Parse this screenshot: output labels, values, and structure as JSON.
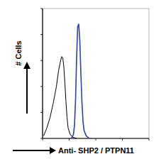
{
  "chart_data": {
    "type": "line",
    "x_label": "Anti- SHP2 / PTPN11",
    "y_label": "# Cells",
    "xlim": [
      0,
      100
    ],
    "ylim": [
      0,
      100
    ],
    "xticks": [
      0,
      25,
      50,
      75,
      100
    ],
    "yticks": [
      0,
      20,
      40,
      60,
      80,
      100
    ],
    "tick_labels": false,
    "grid": false,
    "series": [
      {
        "color": "#000000",
        "x": [
          1,
          4,
          7,
          10,
          13,
          15,
          17,
          18,
          19,
          20,
          21,
          22,
          23,
          24,
          26,
          28,
          32
        ],
        "values": [
          2,
          8,
          16,
          27,
          40,
          52,
          60,
          63,
          62,
          55,
          42,
          28,
          16,
          8,
          3,
          1,
          0
        ]
      },
      {
        "color": "#2f3fbf",
        "x": [
          27,
          29,
          30,
          31,
          32,
          33,
          34,
          35,
          36,
          37,
          38,
          39,
          41,
          44
        ],
        "values": [
          0,
          3,
          10,
          30,
          62,
          86,
          88,
          75,
          50,
          28,
          13,
          6,
          2,
          0
        ]
      }
    ]
  }
}
